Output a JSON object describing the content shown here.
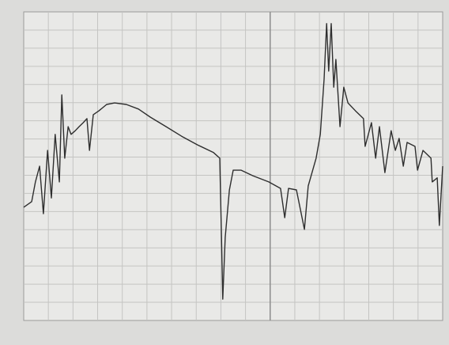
{
  "chart_data": {
    "type": "line",
    "x": [
      0,
      1.9,
      2.8,
      3.8,
      4.7,
      5.7,
      6.6,
      7.5,
      8.5,
      9.1,
      9.8,
      10.6,
      11.3,
      12.3,
      13.2,
      14.2,
      15.1,
      15.7,
      16.6,
      17.9,
      19.8,
      21.7,
      24.5,
      27.4,
      30.2,
      34,
      37.7,
      41.5,
      45.3,
      46.8,
      47.2,
      47.5,
      48.1,
      49.1,
      50,
      51.9,
      54.7,
      58.5,
      61.3,
      62.3,
      63.2,
      65.1,
      67,
      67.9,
      69.8,
      70.8,
      71.7,
      72.3,
      72.8,
      73.4,
      74,
      74.5,
      75.5,
      76.4,
      77.4,
      79.2,
      81.1,
      81.5,
      83,
      84,
      84.9,
      86.2,
      87.7,
      88.7,
      89.6,
      90.6,
      91.5,
      93.4,
      94,
      95.3,
      97.2,
      97.5,
      98.7,
      99.2,
      100
    ],
    "series": [
      {
        "color": "#2e2e2e",
        "values": [
          36.7,
          38.5,
          44.9,
          50,
          34.6,
          55.1,
          39.7,
          60.3,
          44.9,
          73.1,
          52.6,
          62.8,
          60.3,
          61.5,
          62.8,
          64.1,
          65.4,
          55.1,
          66.7,
          67.9,
          70,
          70.5,
          70,
          68.5,
          65.9,
          62.8,
          59.7,
          56.9,
          54.4,
          52.6,
          26.9,
          6.9,
          26.9,
          42.3,
          48.7,
          48.7,
          46.9,
          44.9,
          42.8,
          33.3,
          42.8,
          42.3,
          29.5,
          43.6,
          52.6,
          60.3,
          78.2,
          96.2,
          80.8,
          96.2,
          75.6,
          84.6,
          62.8,
          75.6,
          70.5,
          67.9,
          65.4,
          56.4,
          64.1,
          52.6,
          62.8,
          47.9,
          61.5,
          55.1,
          59,
          50,
          57.7,
          56.4,
          48.7,
          55.1,
          52.6,
          44.9,
          46.2,
          30.8,
          50
        ]
      }
    ],
    "xlim": [
      0,
      100
    ],
    "ylim": [
      0,
      100
    ],
    "grid": true
  }
}
